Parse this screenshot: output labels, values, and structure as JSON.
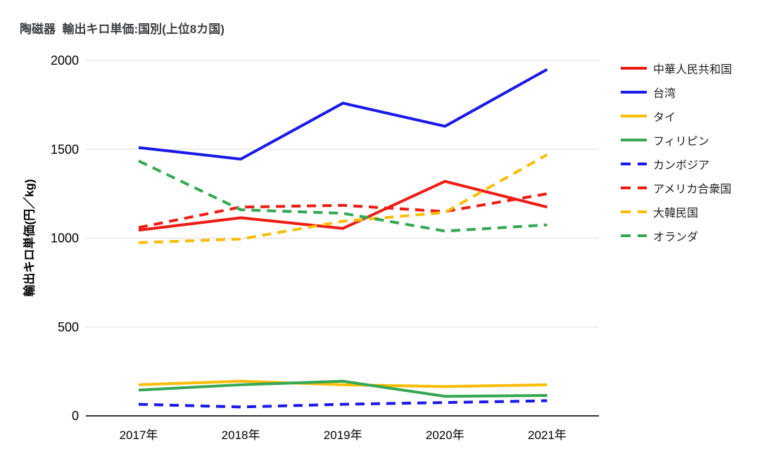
{
  "title": "陶磁器  輸出キロ単価:国別(上位8カ国)",
  "colors": {
    "red": "#ed1c14",
    "blue": "#1a1ae8",
    "yellow": "#fbbc04",
    "green": "#34a853",
    "gridline": "#e2e2e2",
    "axis_line": "#333333",
    "title_text": "#3c4043",
    "tick_text": "#000000"
  },
  "chart_data": {
    "type": "line",
    "title": "陶磁器  輸出キロ単価:国別(上位8カ国)",
    "xlabel": "",
    "ylabel": "輸出キロ単価(円／kg)",
    "categories": [
      "2017年",
      "2018年",
      "2019年",
      "2020年",
      "2021年"
    ],
    "yticks": [
      0,
      500,
      1000,
      1500,
      2000
    ],
    "ylim": [
      0,
      2000
    ],
    "grid": true,
    "legend_position": "right",
    "series": [
      {
        "name": "中華人民共和国",
        "color": "#ed1c14",
        "style": "solid",
        "values": [
          1045,
          1115,
          1055,
          1320,
          1175
        ]
      },
      {
        "name": "台湾",
        "color": "#1a1ae8",
        "style": "solid",
        "values": [
          1510,
          1445,
          1760,
          1630,
          1950
        ]
      },
      {
        "name": "タイ",
        "color": "#fbbc04",
        "style": "solid",
        "values": [
          175,
          195,
          175,
          165,
          175
        ]
      },
      {
        "name": "フィリピン",
        "color": "#34a853",
        "style": "solid",
        "values": [
          145,
          175,
          195,
          110,
          115
        ]
      },
      {
        "name": "カンボジア",
        "color": "#1a1ae8",
        "style": "dashed",
        "values": [
          65,
          50,
          65,
          75,
          85
        ]
      },
      {
        "name": "アメリカ合衆国",
        "color": "#ed1c14",
        "style": "dashed",
        "values": [
          1060,
          1175,
          1185,
          1150,
          1250
        ]
      },
      {
        "name": "大韓民国",
        "color": "#fbbc04",
        "style": "dashed",
        "values": [
          975,
          995,
          1095,
          1145,
          1470
        ]
      },
      {
        "name": "オランダ",
        "color": "#34a853",
        "style": "dashed",
        "values": [
          1435,
          1160,
          1140,
          1040,
          1075
        ]
      }
    ]
  }
}
